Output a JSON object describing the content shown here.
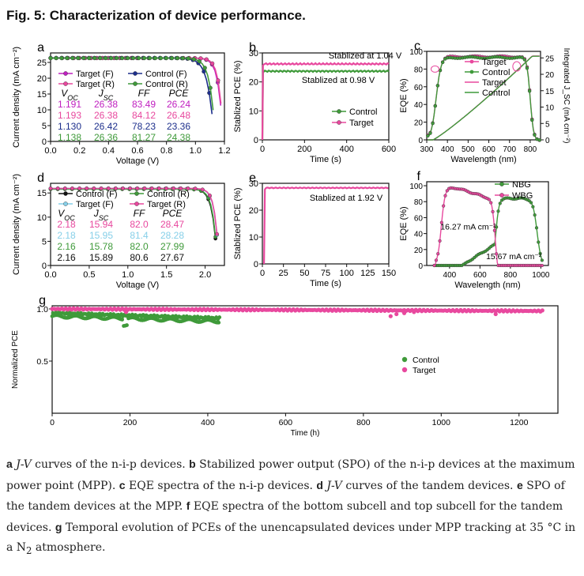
{
  "figure": {
    "title": "Fig. 5: Characterization of device performance.",
    "caption": [
      {
        "b": "a",
        "i": "J-V",
        "t": " curves of the n-i-p devices. "
      },
      {
        "b": "b",
        "t": " Stabilized power output (SPO) of the n-i-p devices at the maximum power point (MPP). "
      },
      {
        "b": "c",
        "t": " EQE spectra of the n-i-p devices. "
      },
      {
        "b": "d",
        "i": "J-V",
        "t": " curves of the tandem devices. "
      },
      {
        "b": "e",
        "t": " SPO of the tandem devices at the MPP. "
      },
      {
        "b": "f",
        "t": " EQE spectra of the bottom subcell and top subcell for the tandem devices. "
      },
      {
        "b": "g",
        "t": " Temporal evolution of PCEs of the unencapsulated devices under MPP tracking at 35 °C in a N",
        "sub": "2",
        "t2": " atmosphere."
      }
    ]
  },
  "colors": {
    "pink": "#e8489e",
    "green": "#3f9a3a",
    "black": "#111111",
    "navy": "#1d2f8c",
    "lightblue": "#86cfe8",
    "magenta": "#c020c0"
  },
  "chart_data": [
    {
      "id": "a",
      "type": "line",
      "panel_label": "a",
      "xlabel": "Voltage (V)",
      "ylabel": "Current density (mA cm⁻²)",
      "xlim": [
        0,
        1.2
      ],
      "ylim": [
        0,
        28
      ],
      "xticks": [
        "0.0",
        "0.2",
        "0.4",
        "0.6",
        "0.8",
        "1.0",
        "1.2"
      ],
      "xtick_values": [
        0,
        0.2,
        0.4,
        0.6,
        0.8,
        1.0,
        1.2
      ],
      "yticks": [
        "0",
        "5",
        "10",
        "15",
        "20",
        "25"
      ],
      "ytick_values": [
        0,
        5,
        10,
        15,
        20,
        25
      ],
      "series": [
        {
          "name": "Target (F)",
          "color": "#c020c0",
          "marker": "circle",
          "jsc": 26.38,
          "voc": 1.191
        },
        {
          "name": "Target (R)",
          "color": "#e8489e",
          "marker": "circle",
          "jsc": 26.38,
          "voc": 1.193
        },
        {
          "name": "Control (F)",
          "color": "#1d2f8c",
          "marker": "circle",
          "jsc": 26.42,
          "voc": 1.13
        },
        {
          "name": "Control (R)",
          "color": "#3f9a3a",
          "marker": "circle",
          "jsc": 26.36,
          "voc": 1.138
        }
      ],
      "table": {
        "headers": [
          "V_OC",
          "J_SC",
          "FF",
          "PCE"
        ],
        "rows": [
          {
            "color": "#c020c0",
            "values": [
              "1.191",
              "26.38",
              "83.49",
              "26.24"
            ]
          },
          {
            "color": "#e8489e",
            "values": [
              "1.193",
              "26.38",
              "84.12",
              "26.48"
            ]
          },
          {
            "color": "#1d2f8c",
            "values": [
              "1.130",
              "26.42",
              "78.23",
              "23.36"
            ]
          },
          {
            "color": "#3f9a3a",
            "values": [
              "1.138",
              "26.36",
              "81.27",
              "24.38"
            ]
          }
        ]
      }
    },
    {
      "id": "b",
      "type": "line",
      "panel_label": "b",
      "xlabel": "Time (s)",
      "ylabel": "Stablized PCE (%)",
      "xlim": [
        0,
        600
      ],
      "ylim": [
        0,
        30
      ],
      "xticks": [
        "0",
        "200",
        "400",
        "600"
      ],
      "xtick_values": [
        0,
        200,
        400,
        600
      ],
      "yticks": [
        "0",
        "10",
        "20",
        "30"
      ],
      "ytick_values": [
        0,
        10,
        20,
        30
      ],
      "series": [
        {
          "name": "Control",
          "color": "#3f9a3a",
          "level": 23.7
        },
        {
          "name": "Target",
          "color": "#e8489e",
          "level": 26.2
        }
      ],
      "annotations": [
        "Stablized at 1.04 V",
        "Stablized at 0.98 V"
      ]
    },
    {
      "id": "c",
      "type": "line",
      "panel_label": "c",
      "xlabel": "Wavelength (nm)",
      "ylabel": "EQE (%)",
      "y2label": "Integrated J_SC (mA cm⁻²)",
      "xlim": [
        300,
        850
      ],
      "ylim": [
        0,
        100
      ],
      "y2lim": [
        0,
        27
      ],
      "xticks": [
        "300",
        "400",
        "500",
        "600",
        "700",
        "800"
      ],
      "xtick_values": [
        300,
        400,
        500,
        600,
        700,
        800
      ],
      "yticks": [
        "0",
        "20",
        "40",
        "60",
        "80",
        "100"
      ],
      "ytick_values": [
        0,
        20,
        40,
        60,
        80,
        100
      ],
      "y2ticks": [
        "0",
        "5",
        "10",
        "15",
        "20",
        "25"
      ],
      "y2tick_values": [
        0,
        5,
        10,
        15,
        20,
        25
      ],
      "series": [
        {
          "name": "Target",
          "color": "#e8489e",
          "kind": "eqe",
          "plateau": 94
        },
        {
          "name": "Control",
          "color": "#3f9a3a",
          "kind": "eqe",
          "plateau": 93
        },
        {
          "name": "Target",
          "color": "#e8489e",
          "kind": "integrated",
          "final": 25.6
        },
        {
          "name": "Control",
          "color": "#3f9a3a",
          "kind": "integrated",
          "final": 25.5
        }
      ]
    },
    {
      "id": "d",
      "type": "line",
      "panel_label": "d",
      "xlabel": "Voltage (V)",
      "ylabel": "Current density (mA cm⁻²)",
      "xlim": [
        0,
        2.25
      ],
      "ylim": [
        0,
        17
      ],
      "xticks": [
        "0.0",
        "0.5",
        "1.0",
        "1.5",
        "2.0"
      ],
      "xtick_values": [
        0,
        0.5,
        1.0,
        1.5,
        2.0
      ],
      "yticks": [
        "0",
        "5",
        "10",
        "15"
      ],
      "ytick_values": [
        0,
        5,
        10,
        15
      ],
      "series": [
        {
          "name": "Control (F)",
          "color": "#111111",
          "jsc": 15.89,
          "voc": 2.16
        },
        {
          "name": "Control (R)",
          "color": "#3f9a3a",
          "jsc": 15.78,
          "voc": 2.16
        },
        {
          "name": "Target (F)",
          "color": "#86cfe8",
          "jsc": 15.95,
          "voc": 2.18
        },
        {
          "name": "Target (R)",
          "color": "#e8489e",
          "jsc": 15.94,
          "voc": 2.18
        }
      ],
      "table": {
        "headers": [
          "V_OC",
          "J_SC",
          "FF",
          "PCE"
        ],
        "rows": [
          {
            "color": "#e8489e",
            "values": [
              "2.18",
              "15.94",
              "82.0",
              "28.47"
            ]
          },
          {
            "color": "#86cfe8",
            "values": [
              "2.18",
              "15.95",
              "81.4",
              "28.28"
            ]
          },
          {
            "color": "#3f9a3a",
            "values": [
              "2.16",
              "15.78",
              "82.0",
              "27.99"
            ]
          },
          {
            "color": "#111111",
            "values": [
              "2.16",
              "15.89",
              "80.6",
              "27.67"
            ]
          }
        ]
      }
    },
    {
      "id": "e",
      "type": "line",
      "panel_label": "e",
      "xlabel": "Time (s)",
      "ylabel": "Stablized PCE (%)",
      "xlim": [
        0,
        150
      ],
      "ylim": [
        0,
        30
      ],
      "xticks": [
        "0",
        "25",
        "50",
        "75",
        "100",
        "125",
        "150"
      ],
      "xtick_values": [
        0,
        25,
        50,
        75,
        100,
        125,
        150
      ],
      "yticks": [
        "0",
        "10",
        "20",
        "30"
      ],
      "ytick_values": [
        0,
        10,
        20,
        30
      ],
      "series": [
        {
          "name": "Target",
          "color": "#e8489e",
          "level": 28.3
        }
      ],
      "annotations": [
        "Stablized at 1.92 V"
      ]
    },
    {
      "id": "f",
      "type": "line",
      "panel_label": "f",
      "xlabel": "Wavelength (nm)",
      "ylabel": "EQE (%)",
      "xlim": [
        250,
        1050
      ],
      "ylim": [
        0,
        105
      ],
      "xticks": [
        "400",
        "600",
        "800",
        "1000"
      ],
      "xtick_values": [
        400,
        600,
        800,
        1000
      ],
      "yticks": [
        "0",
        "20",
        "40",
        "60",
        "80",
        "100"
      ],
      "ytick_values": [
        0,
        20,
        40,
        60,
        80,
        100
      ],
      "series": [
        {
          "name": "NBG",
          "color": "#3f9a3a",
          "integrated": "15.67 mA cm⁻²"
        },
        {
          "name": "WBG",
          "color": "#e8489e",
          "integrated": "16.27 mA cm⁻²"
        }
      ],
      "annotations": [
        "16.27 mA cm⁻²",
        "15.67 mA cm⁻²"
      ]
    },
    {
      "id": "g",
      "type": "scatter",
      "panel_label": "g",
      "xlabel": "Time (h)",
      "ylabel": "Normalized PCE",
      "xlim": [
        0,
        1300
      ],
      "ylim": [
        0,
        1.03
      ],
      "xticks": [
        "0",
        "200",
        "400",
        "600",
        "800",
        "1000",
        "1200"
      ],
      "xtick_values": [
        0,
        200,
        400,
        600,
        800,
        1000,
        1200
      ],
      "yticks": [
        "0.5",
        "1.0"
      ],
      "ytick_values": [
        0.5,
        1.0
      ],
      "series": [
        {
          "name": "Control",
          "color": "#3f9a3a",
          "x_end": 430,
          "final": 0.88
        },
        {
          "name": "Target",
          "color": "#e8489e",
          "x_end": 1260,
          "final": 0.98
        }
      ]
    }
  ]
}
